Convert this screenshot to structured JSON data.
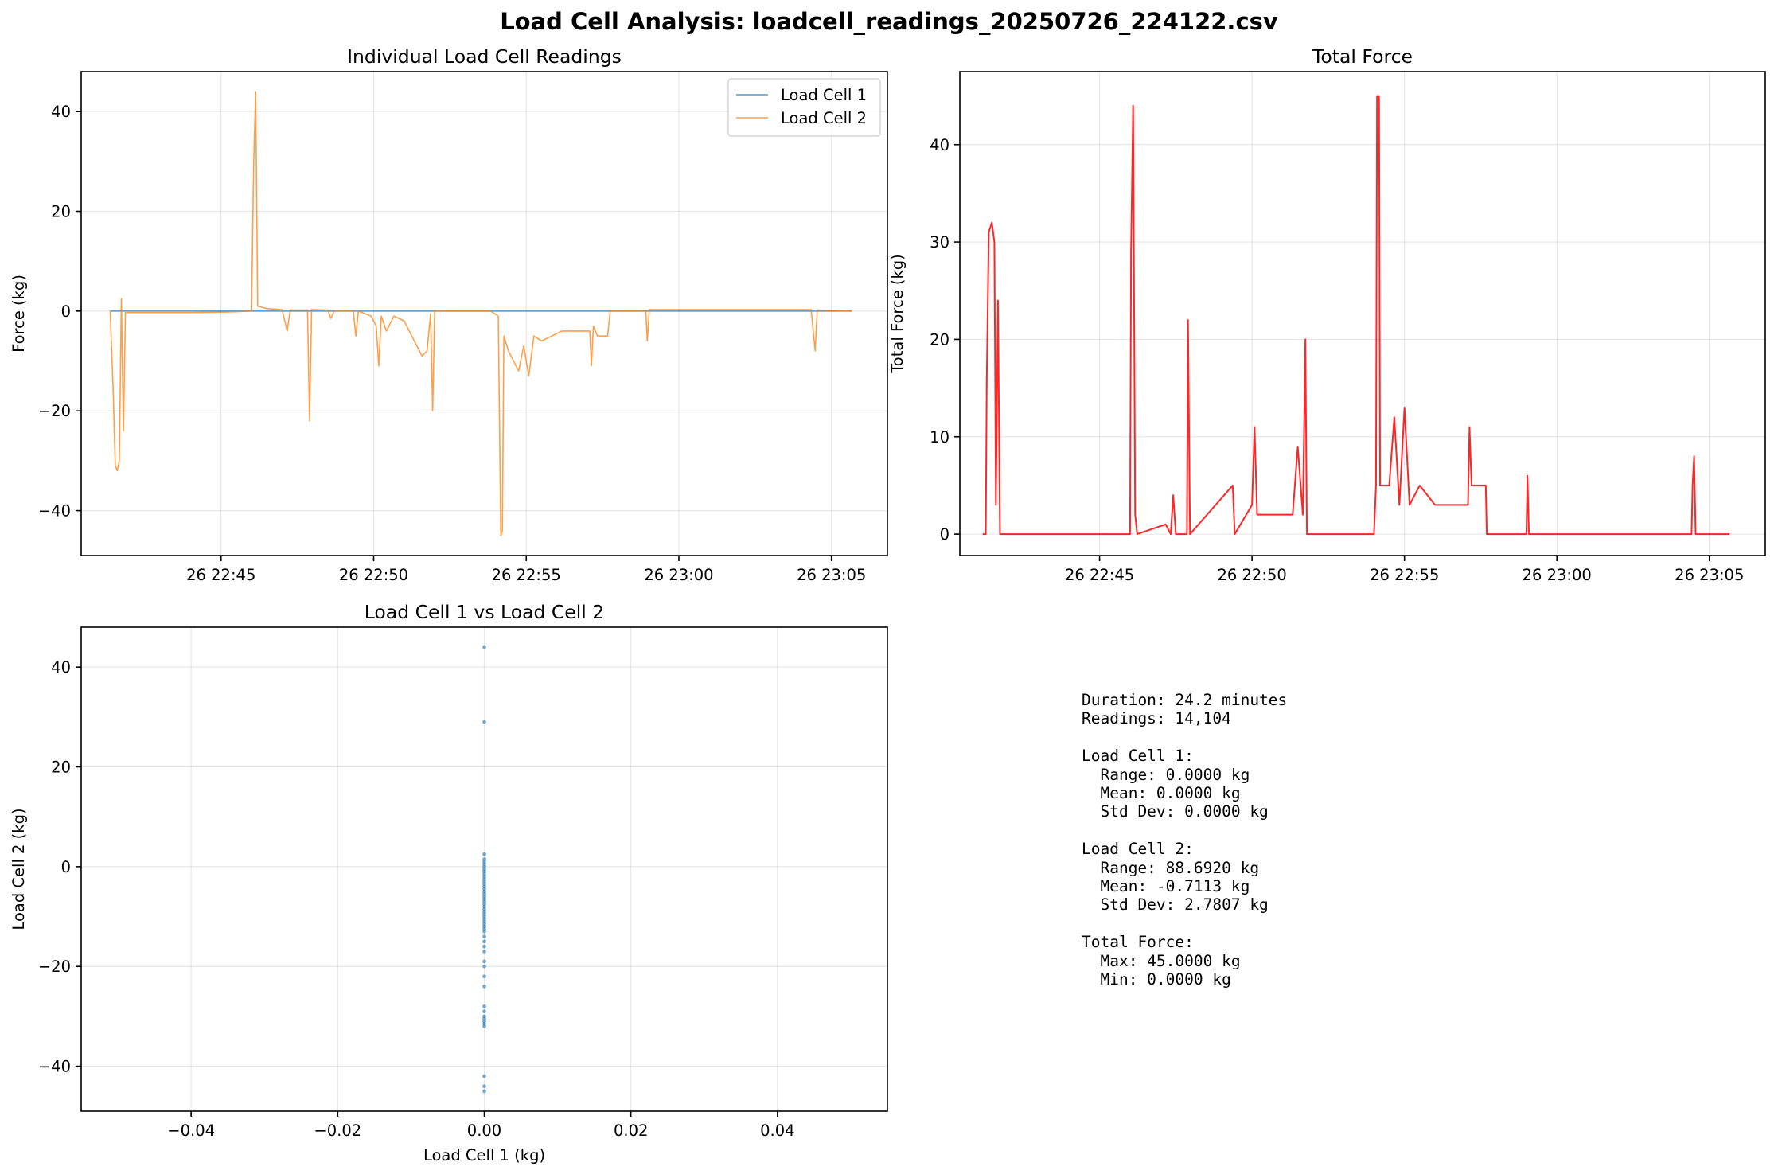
{
  "figure": {
    "title": "Load Cell Analysis: loadcell_readings_20250726_224122.csv"
  },
  "colors": {
    "cell1": "#1f77b4",
    "cell2": "#ff7f0e",
    "total": "#ff0000",
    "scatter": "#1f77b4"
  },
  "chart_data": [
    {
      "id": "individual",
      "type": "line",
      "title": "Individual Load Cell Readings",
      "xlabel": "",
      "ylabel": "Force (kg)",
      "x_axis": "time",
      "xlim": [
        "2025-07-26 22:40:25",
        "2025-07-26 23:06:50"
      ],
      "ylim": [
        -49,
        48
      ],
      "xticks": [
        "2025-07-26 22:45",
        "2025-07-26 22:50",
        "2025-07-26 22:55",
        "2025-07-26 23:00",
        "2025-07-26 23:05"
      ],
      "xtick_labels": [
        "26 22:45",
        "26 22:50",
        "26 22:55",
        "26 23:00",
        "26 23:05"
      ],
      "yticks": [
        -40,
        -20,
        0,
        20,
        40
      ],
      "ytick_labels": [
        "−40",
        "−20",
        "0",
        "20",
        "40"
      ],
      "grid": true,
      "legend": "top-right",
      "series": [
        {
          "name": "Load Cell 1",
          "color": "#1f77b4",
          "points": [
            [
              "2025-07-26 22:41:22",
              0
            ],
            [
              "2025-07-26 22:54:10",
              0
            ],
            [
              "2025-07-26 22:54:10",
              0
            ],
            [
              "2025-07-26 23:05:40",
              0
            ]
          ]
        },
        {
          "name": "Load Cell 2",
          "color": "#ff7f0e",
          "points": [
            [
              "2025-07-26 22:41:22",
              0
            ],
            [
              "2025-07-26 22:41:28",
              -16
            ],
            [
              "2025-07-26 22:41:32",
              -31
            ],
            [
              "2025-07-26 22:41:36",
              -32
            ],
            [
              "2025-07-26 22:41:40",
              -30
            ],
            [
              "2025-07-26 22:41:44",
              2.5
            ],
            [
              "2025-07-26 22:41:48",
              -24
            ],
            [
              "2025-07-26 22:41:52",
              -0.3
            ],
            [
              "2025-07-26 22:44:00",
              -0.3
            ],
            [
              "2025-07-26 22:45:10",
              -0.2
            ],
            [
              "2025-07-26 22:46:00",
              0
            ],
            [
              "2025-07-26 22:46:04",
              29
            ],
            [
              "2025-07-26 22:46:08",
              44
            ],
            [
              "2025-07-26 22:46:12",
              1
            ],
            [
              "2025-07-26 22:46:30",
              0.5
            ],
            [
              "2025-07-26 22:47:00",
              0.3
            ],
            [
              "2025-07-26 22:47:10",
              -4
            ],
            [
              "2025-07-26 22:47:16",
              0.2
            ],
            [
              "2025-07-26 22:47:50",
              0.2
            ],
            [
              "2025-07-26 22:47:54",
              -22
            ],
            [
              "2025-07-26 22:47:58",
              0.3
            ],
            [
              "2025-07-26 22:48:30",
              0.2
            ],
            [
              "2025-07-26 22:48:36",
              -1.5
            ],
            [
              "2025-07-26 22:48:42",
              0
            ],
            [
              "2025-07-26 22:49:20",
              0
            ],
            [
              "2025-07-26 22:49:25",
              -5
            ],
            [
              "2025-07-26 22:49:30",
              0
            ],
            [
              "2025-07-26 22:49:55",
              -1
            ],
            [
              "2025-07-26 22:50:05",
              -3
            ],
            [
              "2025-07-26 22:50:10",
              -11
            ],
            [
              "2025-07-26 22:50:15",
              -1
            ],
            [
              "2025-07-26 22:50:25",
              -4
            ],
            [
              "2025-07-26 22:50:40",
              -1
            ],
            [
              "2025-07-26 22:51:00",
              -2
            ],
            [
              "2025-07-26 22:51:20",
              -6
            ],
            [
              "2025-07-26 22:51:35",
              -9
            ],
            [
              "2025-07-26 22:51:45",
              -8
            ],
            [
              "2025-07-26 22:51:52",
              -0.5
            ],
            [
              "2025-07-26 22:51:56",
              -20
            ],
            [
              "2025-07-26 22:52:00",
              0
            ],
            [
              "2025-07-26 22:53:50",
              0
            ],
            [
              "2025-07-26 22:54:05",
              -1
            ],
            [
              "2025-07-26 22:54:10",
              -45
            ],
            [
              "2025-07-26 22:54:13",
              -44
            ],
            [
              "2025-07-26 22:54:16",
              -5
            ],
            [
              "2025-07-26 22:54:25",
              -8
            ],
            [
              "2025-07-26 22:54:35",
              -10
            ],
            [
              "2025-07-26 22:54:45",
              -12
            ],
            [
              "2025-07-26 22:54:55",
              -7
            ],
            [
              "2025-07-26 22:55:05",
              -13
            ],
            [
              "2025-07-26 22:55:15",
              -5
            ],
            [
              "2025-07-26 22:55:30",
              -6
            ],
            [
              "2025-07-26 22:55:50",
              -5
            ],
            [
              "2025-07-26 22:56:10",
              -4
            ],
            [
              "2025-07-26 22:56:40",
              -4
            ],
            [
              "2025-07-26 22:57:05",
              -4
            ],
            [
              "2025-07-26 22:57:08",
              -11
            ],
            [
              "2025-07-26 22:57:12",
              -3
            ],
            [
              "2025-07-26 22:57:20",
              -5
            ],
            [
              "2025-07-26 22:57:40",
              -5
            ],
            [
              "2025-07-26 22:57:45",
              0
            ],
            [
              "2025-07-26 22:58:55",
              0
            ],
            [
              "2025-07-26 22:58:58",
              -6
            ],
            [
              "2025-07-26 22:59:02",
              0.3
            ],
            [
              "2025-07-26 23:04:20",
              0.3
            ],
            [
              "2025-07-26 23:04:28",
              -8
            ],
            [
              "2025-07-26 23:04:32",
              0.2
            ],
            [
              "2025-07-26 23:05:40",
              0
            ]
          ]
        }
      ]
    },
    {
      "id": "total",
      "type": "line",
      "title": "Total Force",
      "xlabel": "",
      "ylabel": "Total Force (kg)",
      "x_axis": "time",
      "xlim": [
        "2025-07-26 22:40:25",
        "2025-07-26 23:06:50"
      ],
      "ylim": [
        -2.2,
        47.5
      ],
      "xticks": [
        "2025-07-26 22:45",
        "2025-07-26 22:50",
        "2025-07-26 22:55",
        "2025-07-26 23:00",
        "2025-07-26 23:05"
      ],
      "xtick_labels": [
        "26 22:45",
        "26 22:50",
        "26 22:55",
        "26 23:00",
        "26 23:05"
      ],
      "yticks": [
        0,
        10,
        20,
        30,
        40
      ],
      "ytick_labels": [
        "0",
        "10",
        "20",
        "30",
        "40"
      ],
      "grid": true,
      "series": [
        {
          "name": "",
          "color": "#ff0000",
          "points": [
            [
              "2025-07-26 22:41:10",
              0
            ],
            [
              "2025-07-26 22:41:16",
              0
            ],
            [
              "2025-07-26 22:41:18",
              16
            ],
            [
              "2025-07-26 22:41:22",
              31
            ],
            [
              "2025-07-26 22:41:28",
              32
            ],
            [
              "2025-07-26 22:41:33",
              30
            ],
            [
              "2025-07-26 22:41:36",
              3
            ],
            [
              "2025-07-26 22:41:40",
              24
            ],
            [
              "2025-07-26 22:41:44",
              0
            ],
            [
              "2025-07-26 22:46:00",
              0
            ],
            [
              "2025-07-26 22:46:02",
              29
            ],
            [
              "2025-07-26 22:46:06",
              44
            ],
            [
              "2025-07-26 22:46:10",
              2
            ],
            [
              "2025-07-26 22:46:14",
              0
            ],
            [
              "2025-07-26 22:47:10",
              1
            ],
            [
              "2025-07-26 22:47:20",
              0
            ],
            [
              "2025-07-26 22:47:25",
              4
            ],
            [
              "2025-07-26 22:47:30",
              0
            ],
            [
              "2025-07-26 22:47:52",
              0
            ],
            [
              "2025-07-26 22:47:54",
              22
            ],
            [
              "2025-07-26 22:47:58",
              0
            ],
            [
              "2025-07-26 22:49:22",
              5
            ],
            [
              "2025-07-26 22:49:26",
              0
            ],
            [
              "2025-07-26 22:50:00",
              3
            ],
            [
              "2025-07-26 22:50:05",
              11
            ],
            [
              "2025-07-26 22:50:10",
              2
            ],
            [
              "2025-07-26 22:50:30",
              2
            ],
            [
              "2025-07-26 22:51:20",
              2
            ],
            [
              "2025-07-26 22:51:30",
              9
            ],
            [
              "2025-07-26 22:51:40",
              2
            ],
            [
              "2025-07-26 22:51:45",
              20
            ],
            [
              "2025-07-26 22:51:48",
              0
            ],
            [
              "2025-07-26 22:54:00",
              0
            ],
            [
              "2025-07-26 22:54:04",
              5
            ],
            [
              "2025-07-26 22:54:06",
              45
            ],
            [
              "2025-07-26 22:54:10",
              45
            ],
            [
              "2025-07-26 22:54:12",
              5
            ],
            [
              "2025-07-26 22:54:30",
              5
            ],
            [
              "2025-07-26 22:54:40",
              12
            ],
            [
              "2025-07-26 22:54:50",
              3
            ],
            [
              "2025-07-26 22:55:00",
              13
            ],
            [
              "2025-07-26 22:55:10",
              3
            ],
            [
              "2025-07-26 22:55:30",
              5
            ],
            [
              "2025-07-26 22:56:00",
              3
            ],
            [
              "2025-07-26 22:56:40",
              3
            ],
            [
              "2025-07-26 22:57:05",
              3
            ],
            [
              "2025-07-26 22:57:08",
              11
            ],
            [
              "2025-07-26 22:57:12",
              5
            ],
            [
              "2025-07-26 22:57:40",
              5
            ],
            [
              "2025-07-26 22:57:42",
              0
            ],
            [
              "2025-07-26 22:59:00",
              0
            ],
            [
              "2025-07-26 22:59:02",
              6
            ],
            [
              "2025-07-26 22:59:05",
              0
            ],
            [
              "2025-07-26 23:04:25",
              0
            ],
            [
              "2025-07-26 23:04:27",
              5
            ],
            [
              "2025-07-26 23:04:30",
              8
            ],
            [
              "2025-07-26 23:04:33",
              0
            ],
            [
              "2025-07-26 23:05:40",
              0
            ]
          ]
        }
      ]
    },
    {
      "id": "scatter",
      "type": "scatter",
      "title": "Load Cell 1 vs Load Cell 2",
      "xlabel": "Load Cell 1 (kg)",
      "ylabel": "Load Cell 2 (kg)",
      "xlim": [
        -0.055,
        0.055
      ],
      "ylim": [
        -49,
        48
      ],
      "xticks": [
        -0.04,
        -0.02,
        0.0,
        0.02,
        0.04
      ],
      "xtick_labels": [
        "−0.04",
        "−0.02",
        "0.00",
        "0.02",
        "0.04"
      ],
      "yticks": [
        -40,
        -20,
        0,
        20,
        40
      ],
      "ytick_labels": [
        "−40",
        "−20",
        "0",
        "20",
        "40"
      ],
      "grid": true,
      "series": [
        {
          "name": "",
          "color": "#1f77b4",
          "points": [
            [
              0,
              44
            ],
            [
              0,
              29
            ],
            [
              0,
              2.5
            ],
            [
              0,
              1.5
            ],
            [
              0,
              1
            ],
            [
              0,
              0.5
            ],
            [
              0,
              0
            ],
            [
              0,
              -0.5
            ],
            [
              0,
              -1
            ],
            [
              0,
              -1.5
            ],
            [
              0,
              -2
            ],
            [
              0,
              -2.5
            ],
            [
              0,
              -3
            ],
            [
              0,
              -3.5
            ],
            [
              0,
              -4
            ],
            [
              0,
              -4.5
            ],
            [
              0,
              -5
            ],
            [
              0,
              -5.5
            ],
            [
              0,
              -6
            ],
            [
              0,
              -6.5
            ],
            [
              0,
              -7
            ],
            [
              0,
              -7.5
            ],
            [
              0,
              -8
            ],
            [
              0,
              -8.5
            ],
            [
              0,
              -9
            ],
            [
              0,
              -9.5
            ],
            [
              0,
              -10
            ],
            [
              0,
              -10.5
            ],
            [
              0,
              -11
            ],
            [
              0,
              -11.5
            ],
            [
              0,
              -12
            ],
            [
              0,
              -12.5
            ],
            [
              0,
              -13
            ],
            [
              0,
              -14
            ],
            [
              0,
              -15
            ],
            [
              0,
              -16
            ],
            [
              0,
              -17
            ],
            [
              0,
              -19
            ],
            [
              0,
              -20
            ],
            [
              0,
              -22
            ],
            [
              0,
              -24
            ],
            [
              0,
              -28
            ],
            [
              0,
              -29
            ],
            [
              0,
              -30
            ],
            [
              0,
              -30.5
            ],
            [
              0,
              -31
            ],
            [
              0,
              -31.5
            ],
            [
              0,
              -32
            ],
            [
              0,
              -42
            ],
            [
              0,
              -44
            ],
            [
              0,
              -45
            ]
          ]
        }
      ]
    }
  ],
  "stats": {
    "duration": "Duration: 24.2 minutes",
    "readings": "Readings: 14,104",
    "cell1_header": "Load Cell 1:",
    "cell1_range": "  Range: 0.0000 kg",
    "cell1_mean": "  Mean: 0.0000 kg",
    "cell1_std": "  Std Dev: 0.0000 kg",
    "cell2_header": "Load Cell 2:",
    "cell2_range": "  Range: 88.6920 kg",
    "cell2_mean": "  Mean: -0.7113 kg",
    "cell2_std": "  Std Dev: 2.7807 kg",
    "total_header": "Total Force:",
    "total_max": "  Max: 45.0000 kg",
    "total_min": "  Min: 0.0000 kg"
  }
}
